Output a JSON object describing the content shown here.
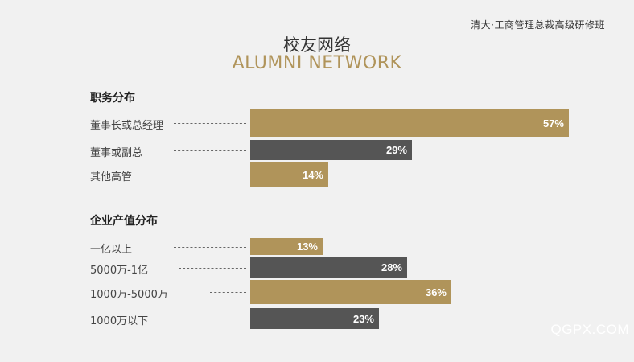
{
  "header": {
    "top_right": "清大·工商管理总裁高级研修班"
  },
  "title": {
    "cn": "校友网络",
    "en": "ALUMNI NETWORK"
  },
  "colors": {
    "gold": "#b0945a",
    "dark": "#555555"
  },
  "chart_data": [
    {
      "type": "bar",
      "title": "职务分布",
      "categories": [
        "董事长或总经理",
        "董事或副总",
        "其他高管"
      ],
      "values": [
        57,
        29,
        14
      ],
      "labels": [
        "57%",
        "29%",
        "14%"
      ],
      "colors": [
        "gold",
        "dark",
        "gold"
      ]
    },
    {
      "type": "bar",
      "title": "企业产值分布",
      "categories": [
        "一亿以上",
        "5000万-1亿",
        "1000万-5000万",
        "1000万以下"
      ],
      "values": [
        13,
        28,
        36,
        23
      ],
      "labels": [
        "13%",
        "28%",
        "36%",
        "23%"
      ],
      "colors": [
        "gold",
        "dark",
        "gold",
        "dark"
      ]
    }
  ],
  "watermark": "QGPX.COM"
}
